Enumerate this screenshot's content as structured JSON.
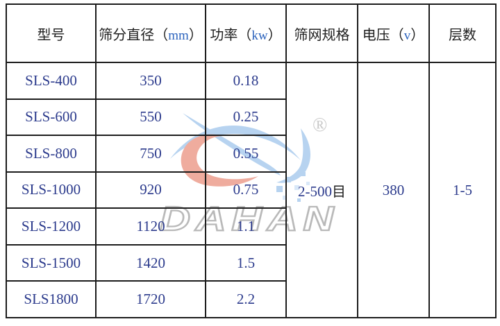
{
  "table": {
    "headers": [
      {
        "pre": "型号",
        "accent": "",
        "post": ""
      },
      {
        "pre": "筛分直径（",
        "accent": "mm",
        "post": "）"
      },
      {
        "pre": "功率（",
        "accent": "kw",
        "post": "）"
      },
      {
        "pre": "筛网规格",
        "accent": "",
        "post": ""
      },
      {
        "pre": "电压（",
        "accent": "v",
        "post": "）"
      },
      {
        "pre": "层数",
        "accent": "",
        "post": ""
      }
    ],
    "rows": [
      {
        "model": "SLS-400",
        "diameter": "350",
        "power": "0.18"
      },
      {
        "model": "SLS-600",
        "diameter": "550",
        "power": "0.25"
      },
      {
        "model": "SLS-800",
        "diameter": "750",
        "power": "0.55"
      },
      {
        "model": "SLS-1000",
        "diameter": "920",
        "power": "0.75"
      },
      {
        "model": "SLS-1200",
        "diameter": "1120",
        "power": "1.1"
      },
      {
        "model": "SLS-1500",
        "diameter": "1420",
        "power": "1.5"
      },
      {
        "model": "SLS1800",
        "diameter": "1720",
        "power": "2.2"
      }
    ],
    "merged": {
      "mesh_value": "2-500",
      "mesh_unit": "目",
      "voltage": "380",
      "layers": "1-5"
    }
  },
  "watermark": {
    "brand": "DAHAN",
    "registered": "®"
  },
  "colors": {
    "grid": "#1c1c1c",
    "header_text": "#1e1e1e",
    "accent_latin": "#2c63bd",
    "data_text": "#2b3a8c",
    "wm_blue": "#b7d3f0",
    "wm_blue_light": "#d9e8f8",
    "wm_red": "#efac9e",
    "wm_gray": "#b9b9b9"
  }
}
